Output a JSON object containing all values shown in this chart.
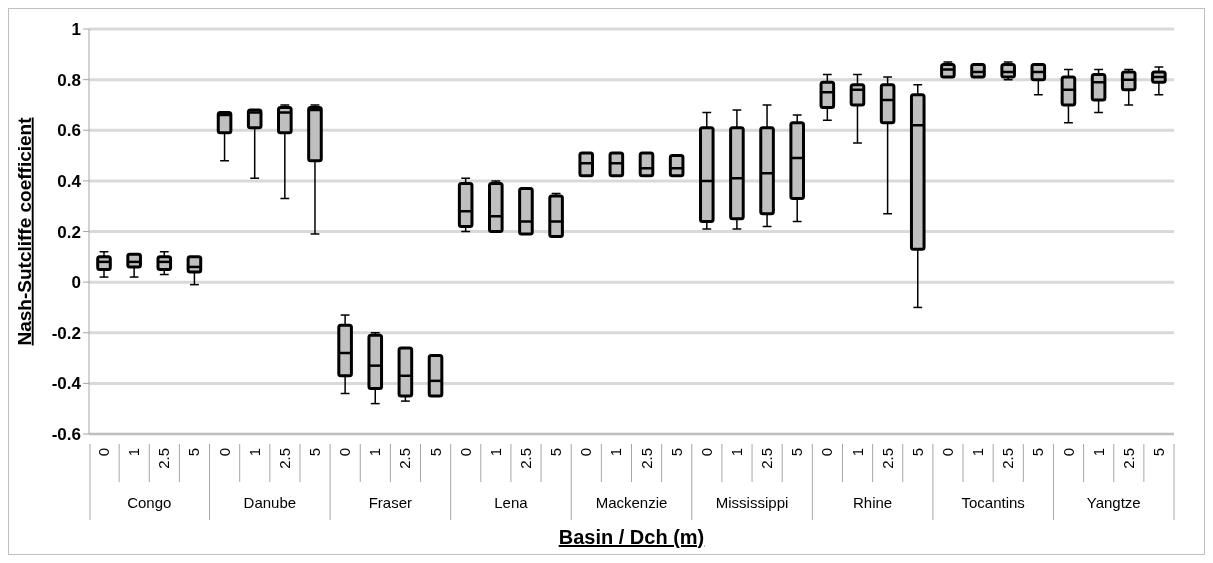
{
  "chart_data": {
    "type": "box",
    "xlabel": "Basin / Dch (m)",
    "ylabel": "Nash-Sutcliffe coefficient",
    "categories": [
      "0",
      "1",
      "2.5",
      "5",
      "0",
      "1",
      "2.5",
      "5",
      "0",
      "1",
      "2.5",
      "5",
      "0",
      "1",
      "2.5",
      "5",
      "0",
      "1",
      "2.5",
      "5",
      "0",
      "1",
      "2.5",
      "5",
      "0",
      "1",
      "2.5",
      "5",
      "0",
      "1",
      "2.5",
      "5",
      "0",
      "1",
      "2.5",
      "5"
    ],
    "annotations": [
      "Congo",
      "Danube",
      "Fraser",
      "Lena",
      "Mackenzie",
      "Mississippi",
      "Rhine",
      "Tocantins",
      "Yangtze"
    ],
    "color": "#bfbfbf",
    "boxes": [
      {
        "low": 0.02,
        "q1": 0.05,
        "median": 0.08,
        "q3": 0.1,
        "high": 0.12
      },
      {
        "low": 0.02,
        "q1": 0.06,
        "median": 0.08,
        "q3": 0.11,
        "high": 0.11
      },
      {
        "low": 0.03,
        "q1": 0.05,
        "median": 0.08,
        "q3": 0.1,
        "high": 0.12
      },
      {
        "low": -0.01,
        "q1": 0.04,
        "median": 0.06,
        "q3": 0.1,
        "high": 0.1
      },
      {
        "low": 0.48,
        "q1": 0.59,
        "median": 0.66,
        "q3": 0.67,
        "high": 0.67
      },
      {
        "low": 0.41,
        "q1": 0.61,
        "median": 0.67,
        "q3": 0.68,
        "high": 0.68
      },
      {
        "low": 0.33,
        "q1": 0.59,
        "median": 0.67,
        "q3": 0.69,
        "high": 0.7
      },
      {
        "low": 0.19,
        "q1": 0.48,
        "median": 0.68,
        "q3": 0.69,
        "high": 0.7
      },
      {
        "low": -0.44,
        "q1": -0.37,
        "median": -0.28,
        "q3": -0.17,
        "high": -0.13
      },
      {
        "low": -0.48,
        "q1": -0.42,
        "median": -0.33,
        "q3": -0.21,
        "high": -0.2
      },
      {
        "low": -0.47,
        "q1": -0.45,
        "median": -0.37,
        "q3": -0.26,
        "high": -0.26
      },
      {
        "low": -0.45,
        "q1": -0.45,
        "median": -0.39,
        "q3": -0.29,
        "high": -0.29
      },
      {
        "low": 0.2,
        "q1": 0.22,
        "median": 0.28,
        "q3": 0.39,
        "high": 0.41
      },
      {
        "low": 0.2,
        "q1": 0.2,
        "median": 0.26,
        "q3": 0.39,
        "high": 0.4
      },
      {
        "low": 0.19,
        "q1": 0.19,
        "median": 0.24,
        "q3": 0.37,
        "high": 0.37
      },
      {
        "low": 0.18,
        "q1": 0.18,
        "median": 0.24,
        "q3": 0.34,
        "high": 0.35
      },
      {
        "low": 0.42,
        "q1": 0.42,
        "median": 0.47,
        "q3": 0.51,
        "high": 0.51
      },
      {
        "low": 0.42,
        "q1": 0.42,
        "median": 0.47,
        "q3": 0.51,
        "high": 0.51
      },
      {
        "low": 0.42,
        "q1": 0.42,
        "median": 0.45,
        "q3": 0.51,
        "high": 0.51
      },
      {
        "low": 0.42,
        "q1": 0.42,
        "median": 0.45,
        "q3": 0.5,
        "high": 0.5
      },
      {
        "low": 0.21,
        "q1": 0.24,
        "median": 0.4,
        "q3": 0.61,
        "high": 0.67
      },
      {
        "low": 0.21,
        "q1": 0.25,
        "median": 0.41,
        "q3": 0.61,
        "high": 0.68
      },
      {
        "low": 0.22,
        "q1": 0.27,
        "median": 0.43,
        "q3": 0.61,
        "high": 0.7
      },
      {
        "low": 0.24,
        "q1": 0.33,
        "median": 0.49,
        "q3": 0.63,
        "high": 0.66
      },
      {
        "low": 0.64,
        "q1": 0.69,
        "median": 0.75,
        "q3": 0.79,
        "high": 0.82
      },
      {
        "low": 0.55,
        "q1": 0.7,
        "median": 0.76,
        "q3": 0.78,
        "high": 0.82
      },
      {
        "low": 0.27,
        "q1": 0.63,
        "median": 0.72,
        "q3": 0.78,
        "high": 0.81
      },
      {
        "low": -0.1,
        "q1": 0.13,
        "median": 0.62,
        "q3": 0.74,
        "high": 0.78
      },
      {
        "low": 0.81,
        "q1": 0.81,
        "median": 0.84,
        "q3": 0.86,
        "high": 0.87
      },
      {
        "low": 0.81,
        "q1": 0.81,
        "median": 0.83,
        "q3": 0.86,
        "high": 0.86
      },
      {
        "low": 0.8,
        "q1": 0.81,
        "median": 0.83,
        "q3": 0.86,
        "high": 0.87
      },
      {
        "low": 0.74,
        "q1": 0.8,
        "median": 0.83,
        "q3": 0.86,
        "high": 0.86
      },
      {
        "low": 0.63,
        "q1": 0.7,
        "median": 0.76,
        "q3": 0.81,
        "high": 0.84
      },
      {
        "low": 0.67,
        "q1": 0.72,
        "median": 0.79,
        "q3": 0.82,
        "high": 0.84
      },
      {
        "low": 0.7,
        "q1": 0.76,
        "median": 0.8,
        "q3": 0.83,
        "high": 0.84
      },
      {
        "low": 0.74,
        "q1": 0.79,
        "median": 0.81,
        "q3": 0.83,
        "high": 0.85
      }
    ],
    "ylim": [
      -0.6,
      1
    ],
    "yticks": [
      -0.6,
      -0.4,
      -0.2,
      0,
      0.2,
      0.4,
      0.6,
      0.8,
      1
    ],
    "grid": "y"
  }
}
